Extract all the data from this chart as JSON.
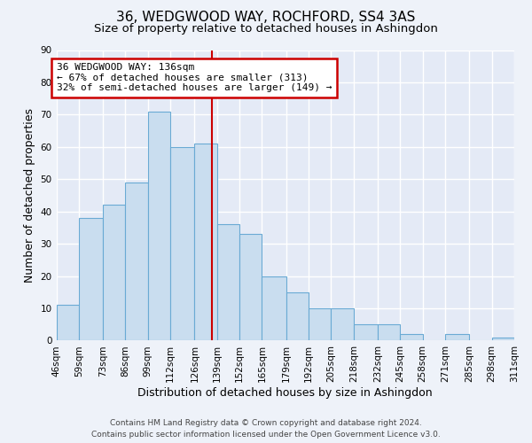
{
  "title": "36, WEDGWOOD WAY, ROCHFORD, SS4 3AS",
  "subtitle": "Size of property relative to detached houses in Ashingdon",
  "xlabel": "Distribution of detached houses by size in Ashingdon",
  "ylabel": "Number of detached properties",
  "bar_values": [
    11,
    38,
    42,
    49,
    71,
    60,
    61,
    36,
    33,
    20,
    15,
    10,
    10,
    5,
    5,
    2,
    0,
    2,
    0,
    1
  ],
  "bar_labels": [
    "46sqm",
    "59sqm",
    "73sqm",
    "86sqm",
    "99sqm",
    "112sqm",
    "126sqm",
    "139sqm",
    "152sqm",
    "165sqm",
    "179sqm",
    "192sqm",
    "205sqm",
    "218sqm",
    "232sqm",
    "245sqm",
    "258sqm",
    "271sqm",
    "285sqm",
    "298sqm",
    "311sqm"
  ],
  "bin_edges": [
    46,
    59,
    73,
    86,
    99,
    112,
    126,
    139,
    152,
    165,
    179,
    192,
    205,
    218,
    232,
    245,
    258,
    271,
    285,
    298,
    311
  ],
  "bar_color": "#c9ddef",
  "bar_edge_color": "#6aaad4",
  "ylim": [
    0,
    90
  ],
  "yticks": [
    0,
    10,
    20,
    30,
    40,
    50,
    60,
    70,
    80,
    90
  ],
  "property_line_x": 136,
  "property_line_color": "#cc0000",
  "annotation_title": "36 WEDGWOOD WAY: 136sqm",
  "annotation_line1": "← 67% of detached houses are smaller (313)",
  "annotation_line2": "32% of semi-detached houses are larger (149) →",
  "annotation_box_edgecolor": "#cc0000",
  "footer_line1": "Contains HM Land Registry data © Crown copyright and database right 2024.",
  "footer_line2": "Contains public sector information licensed under the Open Government Licence v3.0.",
  "background_color": "#eef2f9",
  "plot_background_color": "#e4eaf6",
  "grid_color": "#ffffff",
  "title_fontsize": 11,
  "subtitle_fontsize": 9.5,
  "axis_label_fontsize": 9,
  "tick_fontsize": 7.5,
  "annotation_fontsize": 8,
  "footer_fontsize": 6.5
}
